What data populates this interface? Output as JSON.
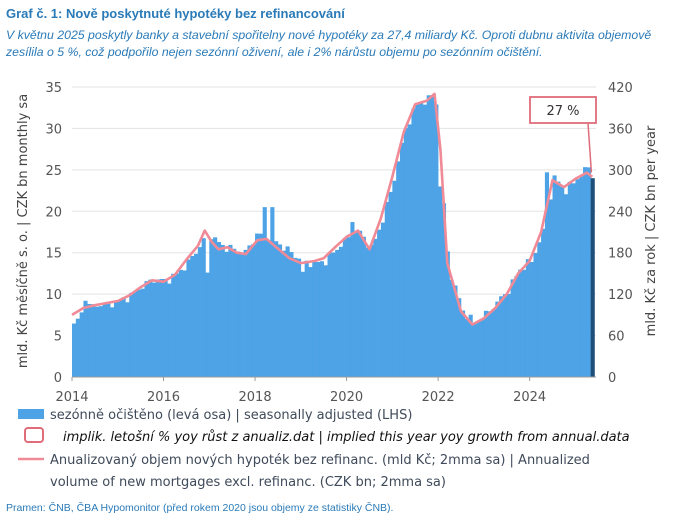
{
  "title": "Graf č. 1: Nově poskytnuté hypotéky bez refinancování",
  "subtitle": "V květnu 2025 poskytly banky a stavební spořitelny nové hypotéky za 27,4 miliardy Kč. Oproti dubnu aktivita objemově zesílila o 5 %, což podpořilo nejen sezónní oživení, ale i 2% nárůstu objemu po sezónním očištění.",
  "source": "Pramen: ČNB, ČBA Hypomonitor (před rokem 2020 jsou objemy ze statistiky ČNB).",
  "colors": {
    "bars": "#4da3e6",
    "last_bar": "#1f4e79",
    "line": "#f08a96",
    "annotation_box": "#e06c7a",
    "title": "#2a7ab8"
  },
  "chart_data": {
    "type": "bar",
    "x_ticks": [
      "2014",
      "2016",
      "2018",
      "2020",
      "2022",
      "2024"
    ],
    "x_range": [
      2014.0,
      2025.45
    ],
    "ylabel_left": "mld. Kč měsíčně s. o. | CZK bn monthly sa",
    "ylabel_right": "mld. Kč za rok | CZK bn per year",
    "ylim_left": [
      0,
      35
    ],
    "ylim_right": [
      0,
      420
    ],
    "yticks_left": [
      "0",
      "5",
      "10",
      "15",
      "20",
      "25",
      "30",
      "35"
    ],
    "yticks_right": [
      "0",
      "60",
      "120",
      "180",
      "240",
      "300",
      "360",
      "420"
    ],
    "grid": "horizontal",
    "legend_position": "bottom",
    "annotation": {
      "text": "27 %",
      "target_x": 2025.35,
      "target_y_right": 296
    },
    "anchors": [
      [
        2014.0,
        6.2
      ],
      [
        2014.25,
        8.4
      ],
      [
        2014.5,
        8.7
      ],
      [
        2014.75,
        8.8
      ],
      [
        2015.0,
        9.2
      ],
      [
        2015.25,
        9.8
      ],
      [
        2015.5,
        11.0
      ],
      [
        2015.75,
        11.8
      ],
      [
        2016.0,
        11.6
      ],
      [
        2016.25,
        12.4
      ],
      [
        2016.5,
        13.8
      ],
      [
        2016.75,
        15.8
      ],
      [
        2016.95,
        17.5
      ],
      [
        2017.1,
        16.5
      ],
      [
        2017.25,
        15.8
      ],
      [
        2017.5,
        15.4
      ],
      [
        2017.75,
        15.0
      ],
      [
        2018.0,
        17.2
      ],
      [
        2018.25,
        17.0
      ],
      [
        2018.5,
        16.0
      ],
      [
        2018.75,
        15.0
      ],
      [
        2019.0,
        14.0
      ],
      [
        2019.25,
        13.7
      ],
      [
        2019.5,
        14.0
      ],
      [
        2019.75,
        15.5
      ],
      [
        2020.0,
        16.8
      ],
      [
        2020.25,
        17.5
      ],
      [
        2020.5,
        15.5
      ],
      [
        2020.75,
        19.0
      ],
      [
        2021.0,
        24.0
      ],
      [
        2021.25,
        30.0
      ],
      [
        2021.5,
        33.0
      ],
      [
        2021.75,
        33.5
      ],
      [
        2021.9,
        34.5
      ],
      [
        2022.0,
        26.0
      ],
      [
        2022.2,
        13.0
      ],
      [
        2022.5,
        8.0
      ],
      [
        2022.75,
        6.5
      ],
      [
        2023.0,
        7.5
      ],
      [
        2023.25,
        9.0
      ],
      [
        2023.5,
        10.5
      ],
      [
        2023.75,
        13.0
      ],
      [
        2024.0,
        14.0
      ],
      [
        2024.25,
        17.5
      ],
      [
        2024.5,
        24.0
      ],
      [
        2024.75,
        22.5
      ],
      [
        2025.0,
        24.0
      ],
      [
        2025.2,
        25.0
      ],
      [
        2025.37,
        24.1
      ]
    ],
    "spikes": [
      [
        2014.25,
        9.2
      ],
      [
        2016.9,
        20.7
      ],
      [
        2018.17,
        20.5
      ],
      [
        2018.3,
        20.5
      ],
      [
        2020.08,
        18.7
      ],
      [
        2021.5,
        32.9
      ],
      [
        2021.72,
        34.0
      ],
      [
        2024.35,
        24.7
      ],
      [
        2025.22,
        25.3
      ]
    ],
    "dips": [
      [
        2016.95,
        12.6
      ],
      [
        2019.0,
        12.7
      ],
      [
        2022.0,
        23.0
      ]
    ],
    "line": [
      [
        2014.0,
        90
      ],
      [
        2014.25,
        100
      ],
      [
        2014.5,
        104
      ],
      [
        2014.75,
        107
      ],
      [
        2015.0,
        110
      ],
      [
        2015.25,
        118
      ],
      [
        2015.5,
        130
      ],
      [
        2015.75,
        140
      ],
      [
        2016.0,
        138
      ],
      [
        2016.25,
        148
      ],
      [
        2016.5,
        170
      ],
      [
        2016.75,
        190
      ],
      [
        2016.9,
        212
      ],
      [
        2017.05,
        196
      ],
      [
        2017.2,
        185
      ],
      [
        2017.4,
        188
      ],
      [
        2017.6,
        180
      ],
      [
        2017.8,
        178
      ],
      [
        2018.05,
        198
      ],
      [
        2018.25,
        200
      ],
      [
        2018.5,
        186
      ],
      [
        2018.75,
        172
      ],
      [
        2019.0,
        165
      ],
      [
        2019.3,
        168
      ],
      [
        2019.5,
        172
      ],
      [
        2019.75,
        188
      ],
      [
        2020.0,
        203
      ],
      [
        2020.25,
        212
      ],
      [
        2020.5,
        185
      ],
      [
        2020.75,
        230
      ],
      [
        2021.0,
        290
      ],
      [
        2021.25,
        355
      ],
      [
        2021.5,
        395
      ],
      [
        2021.75,
        400
      ],
      [
        2021.92,
        410
      ],
      [
        2022.05,
        330
      ],
      [
        2022.2,
        165
      ],
      [
        2022.5,
        95
      ],
      [
        2022.75,
        76
      ],
      [
        2023.0,
        85
      ],
      [
        2023.25,
        100
      ],
      [
        2023.5,
        120
      ],
      [
        2023.75,
        150
      ],
      [
        2024.0,
        168
      ],
      [
        2024.25,
        210
      ],
      [
        2024.5,
        285
      ],
      [
        2024.75,
        275
      ],
      [
        2025.0,
        287
      ],
      [
        2025.25,
        296
      ],
      [
        2025.37,
        290
      ]
    ],
    "series": [
      {
        "name": "sezónně očištěno (levá osa) | seasonally adjusted (LHS)",
        "kind": "bar"
      },
      {
        "name": "implik. letošní % yoy růst z anualiz.dat | implied this year yoy growth from annual.data",
        "kind": "box"
      },
      {
        "name": "Anualizovaný objem nových hypoték bez refinanc. (mld Kč; 2mma sa) | Annualized volume of new mortgages excl. refinanc. (CZK bn; 2mma sa)",
        "kind": "line"
      }
    ],
    "legend_lines": {
      "bar": "sezónně očištěno (levá osa) | seasonally adjusted (LHS)",
      "box": "implik. letošní % yoy růst z anualiz.dat | implied this year yoy growth from annual.data",
      "line1": "Anualizovaný objem nových hypoték bez refinanc. (mld Kč; 2mma sa) |  Annualized",
      "line2": "volume of new mortgages excl. refinanc. (CZK bn; 2mma sa)"
    }
  }
}
